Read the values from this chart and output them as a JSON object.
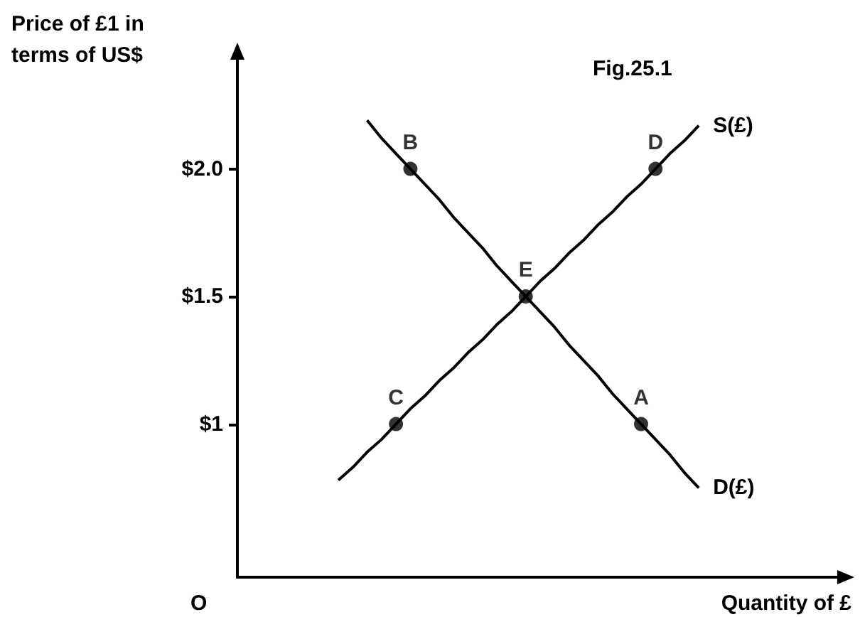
{
  "chart_data": {
    "type": "line",
    "title": "Fig.25.1",
    "xlabel": "Quantity of £",
    "ylabel": "Price of £1 in terms of US$",
    "annotations": [
      "O"
    ],
    "categories": [
      null,
      null,
      null,
      null,
      null,
      null,
      null,
      null,
      null,
      null,
      null,
      null,
      null,
      null,
      null,
      null,
      null,
      null,
      null,
      null,
      null,
      null,
      null,
      null,
      null,
      null,
      null,
      null,
      null,
      null,
      null,
      null,
      null,
      null,
      null,
      null,
      null,
      null,
      null,
      null,
      null,
      null,
      null
    ],
    "ylim": [
      0.4,
      2.45
    ],
    "yticks": [
      {
        "value": 1,
        "label": "$1"
      },
      {
        "value": 1.5,
        "label": "$1.5"
      },
      {
        "value": 2,
        "label": "$2.0"
      }
    ],
    "tick_labels": "y",
    "series": [
      {
        "name": "S(£)",
        "color": "#000000",
        "marker": "none",
        "values": [
          null,
          null,
          null,
          null,
          null,
          null,
          null,
          0.78,
          0.83,
          0.89,
          0.94,
          1.0,
          1.06,
          1.11,
          1.17,
          1.22,
          1.28,
          1.33,
          1.39,
          1.44,
          1.5,
          1.56,
          1.61,
          1.67,
          1.72,
          1.78,
          1.83,
          1.89,
          1.94,
          2.0,
          2.06,
          2.11,
          2.17,
          null,
          null,
          null,
          null,
          null,
          null,
          null,
          null,
          null,
          null
        ]
      },
      {
        "name": "D(£)",
        "color": "#000000",
        "marker": "none",
        "values": [
          null,
          null,
          null,
          null,
          null,
          null,
          null,
          null,
          null,
          2.19,
          2.12,
          2.06,
          2.0,
          1.94,
          1.88,
          1.81,
          1.75,
          1.69,
          1.62,
          1.56,
          1.5,
          1.44,
          1.38,
          1.31,
          1.25,
          1.19,
          1.12,
          1.06,
          1.0,
          0.94,
          0.88,
          0.81,
          0.75,
          null,
          null,
          null,
          null,
          null,
          null,
          null,
          null,
          null,
          null
        ]
      },
      {
        "type": "scatter",
        "color": "#000000",
        "marker": "circle",
        "values": [
          null,
          null,
          null,
          null,
          null,
          null,
          null,
          null,
          null,
          null,
          null,
          1.0,
          2.0,
          null,
          null,
          null,
          null,
          null,
          null,
          null,
          1.5,
          null,
          null,
          null,
          null,
          null,
          null,
          null,
          1.0,
          2.0,
          null,
          null,
          null,
          null,
          null,
          null,
          null,
          null,
          null,
          null,
          null,
          null,
          null
        ],
        "value_labels": [
          null,
          null,
          null,
          null,
          null,
          null,
          null,
          null,
          null,
          null,
          null,
          "C",
          "B",
          null,
          null,
          null,
          null,
          null,
          null,
          null,
          "E",
          null,
          null,
          null,
          null,
          null,
          null,
          null,
          "A",
          "D",
          null,
          null,
          null,
          null,
          null,
          null,
          null,
          null,
          null,
          null,
          null,
          null,
          null
        ]
      }
    ]
  }
}
